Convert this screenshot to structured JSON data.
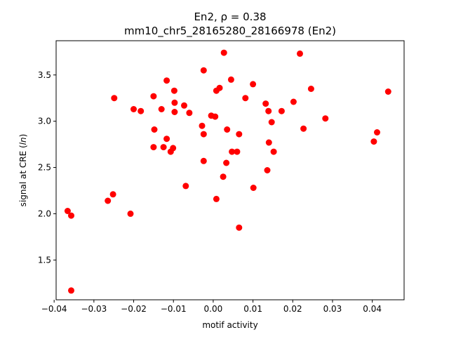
{
  "chart_data": {
    "type": "scatter",
    "title_line1": "En2, ρ = 0.38",
    "title_line2": "mm10_chr5_28165280_28166978 (En2)",
    "xlabel": "motif activity",
    "ylabel_prefix": "signal at CRE (",
    "ylabel_italic": "ln",
    "ylabel_suffix": ")",
    "xlim": [
      -0.0395,
      0.048
    ],
    "ylim": [
      1.07,
      3.87
    ],
    "x_ticks": [
      -0.04,
      -0.03,
      -0.02,
      -0.01,
      0.0,
      0.01,
      0.02,
      0.03,
      0.04
    ],
    "x_tick_labels": [
      "−0.04",
      "−0.03",
      "−0.02",
      "−0.01",
      "0.00",
      "0.01",
      "0.02",
      "0.03",
      "0.04"
    ],
    "y_ticks": [
      1.5,
      2.0,
      2.5,
      3.0,
      3.5
    ],
    "y_tick_labels": [
      "1.5",
      "2.0",
      "2.5",
      "3.0",
      "3.5"
    ],
    "marker_color": "#ff0000",
    "grid": false,
    "points": [
      {
        "x": -0.0366,
        "y": 2.03
      },
      {
        "x": -0.0357,
        "y": 1.98
      },
      {
        "x": -0.0357,
        "y": 1.17
      },
      {
        "x": -0.0265,
        "y": 2.14
      },
      {
        "x": -0.0252,
        "y": 2.21
      },
      {
        "x": -0.0249,
        "y": 3.25
      },
      {
        "x": -0.0208,
        "y": 2.0
      },
      {
        "x": -0.02,
        "y": 3.13
      },
      {
        "x": -0.0182,
        "y": 3.11
      },
      {
        "x": -0.015,
        "y": 3.27
      },
      {
        "x": -0.0148,
        "y": 2.91
      },
      {
        "x": -0.015,
        "y": 2.72
      },
      {
        "x": -0.013,
        "y": 3.13
      },
      {
        "x": -0.0125,
        "y": 2.72
      },
      {
        "x": -0.0117,
        "y": 3.44
      },
      {
        "x": -0.0117,
        "y": 2.81
      },
      {
        "x": -0.0107,
        "y": 2.67
      },
      {
        "x": -0.0101,
        "y": 2.71
      },
      {
        "x": -0.0098,
        "y": 3.33
      },
      {
        "x": -0.0097,
        "y": 3.2
      },
      {
        "x": -0.0097,
        "y": 3.1
      },
      {
        "x": -0.0073,
        "y": 3.17
      },
      {
        "x": -0.0069,
        "y": 2.3
      },
      {
        "x": -0.006,
        "y": 3.09
      },
      {
        "x": -0.0028,
        "y": 2.95
      },
      {
        "x": -0.0024,
        "y": 3.55
      },
      {
        "x": -0.0024,
        "y": 2.86
      },
      {
        "x": -0.0024,
        "y": 2.57
      },
      {
        "x": -0.0005,
        "y": 3.06
      },
      {
        "x": 0.0005,
        "y": 3.05
      },
      {
        "x": 0.0008,
        "y": 3.33
      },
      {
        "x": 0.0016,
        "y": 3.36
      },
      {
        "x": 0.0008,
        "y": 2.16
      },
      {
        "x": 0.0025,
        "y": 2.4
      },
      {
        "x": 0.0027,
        "y": 3.74
      },
      {
        "x": 0.0035,
        "y": 2.91
      },
      {
        "x": 0.0033,
        "y": 2.55
      },
      {
        "x": 0.0045,
        "y": 3.45
      },
      {
        "x": 0.0047,
        "y": 2.67
      },
      {
        "x": 0.006,
        "y": 2.67
      },
      {
        "x": 0.0065,
        "y": 2.86
      },
      {
        "x": 0.0065,
        "y": 1.85
      },
      {
        "x": 0.0081,
        "y": 3.25
      },
      {
        "x": 0.01,
        "y": 3.4
      },
      {
        "x": 0.0101,
        "y": 2.28
      },
      {
        "x": 0.0132,
        "y": 3.19
      },
      {
        "x": 0.0139,
        "y": 3.11
      },
      {
        "x": 0.014,
        "y": 2.77
      },
      {
        "x": 0.0136,
        "y": 2.47
      },
      {
        "x": 0.0147,
        "y": 2.99
      },
      {
        "x": 0.0152,
        "y": 2.67
      },
      {
        "x": 0.0172,
        "y": 3.11
      },
      {
        "x": 0.0202,
        "y": 3.21
      },
      {
        "x": 0.0218,
        "y": 3.73
      },
      {
        "x": 0.0227,
        "y": 2.92
      },
      {
        "x": 0.0246,
        "y": 3.35
      },
      {
        "x": 0.0282,
        "y": 3.03
      },
      {
        "x": 0.0404,
        "y": 2.78
      },
      {
        "x": 0.0412,
        "y": 2.88
      },
      {
        "x": 0.044,
        "y": 3.32
      }
    ]
  }
}
